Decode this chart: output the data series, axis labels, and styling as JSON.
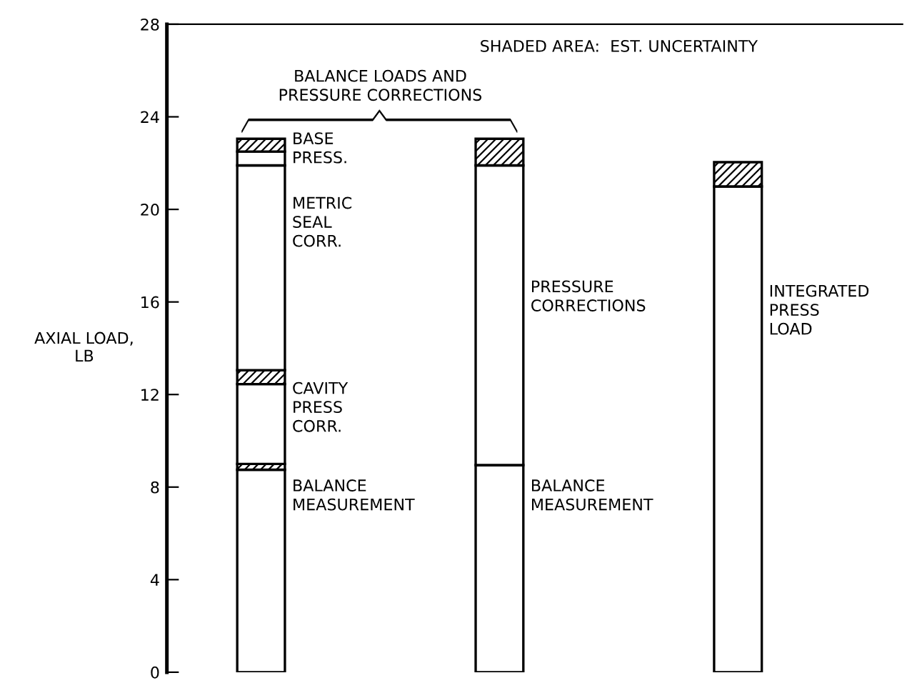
{
  "chart_data": {
    "type": "bar",
    "stacked": true,
    "categories": [
      null,
      null,
      null
    ],
    "ylabel": "AXIAL LOAD,\nLB",
    "series": [
      {
        "color": "#ffffff",
        "values": [
          8.75,
          8.95,
          20.99
        ]
      },
      {
        "color": "#000000",
        "values": [
          0.25,
          null,
          1.05
        ]
      },
      {
        "color": "#ffffff",
        "values": [
          3.45,
          12.95,
          null
        ]
      },
      {
        "color": "#000000",
        "values": [
          0.6,
          1.15,
          null
        ]
      },
      {
        "color": "#ffffff",
        "values": [
          8.85,
          null,
          null
        ]
      },
      {
        "color": "#ffffff",
        "values": [
          0.6,
          null,
          null
        ]
      },
      {
        "color": "#000000",
        "values": [
          0.55,
          null,
          null
        ]
      }
    ],
    "ylim": [
      0,
      28
    ],
    "yticks": [
      0,
      4,
      8,
      12,
      16,
      20,
      24,
      28
    ],
    "grid": false,
    "tick_labels": "y",
    "annotations": [
      "SHADED AREA:  EST. UNCERTAINTY",
      "BALANCE LOADS AND\nPRESSURE CORRECTIONS",
      "BASE\nPRESS.",
      "METRIC\nSEAL\nCORR.",
      "CAVITY\nPRESS\nCORR.",
      "BALANCE\nMEASUREMENT",
      "PRESSURE\nCORRECTIONS",
      "BALANCE\nMEASUREMENT",
      "INTEGRATED\nPRESS\nLOAD"
    ]
  }
}
